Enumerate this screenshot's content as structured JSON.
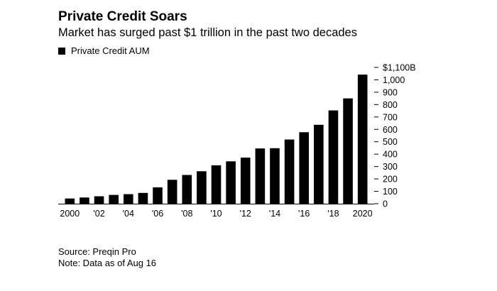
{
  "chart_data": {
    "type": "bar",
    "title": "Private Credit Soars",
    "subtitle": "Market has surged past $1 trillion in the past two decades",
    "legend": "Private Credit AUM",
    "categories": [
      "2000",
      "2001",
      "2002",
      "2003",
      "2004",
      "2005",
      "2006",
      "2007",
      "2008",
      "2009",
      "2010",
      "2011",
      "2012",
      "2013",
      "2014",
      "2015",
      "2016",
      "2017",
      "2018",
      "2019",
      "2020"
    ],
    "x_tick_labels": [
      "2000",
      "'02",
      "'04",
      "'06",
      "'08",
      "'10",
      "'12",
      "'14",
      "'16",
      "'18",
      "2020"
    ],
    "series": [
      {
        "name": "Private Credit AUM",
        "values": [
          42,
          50,
          60,
          71,
          77,
          87,
          132,
          193,
          232,
          262,
          310,
          342,
          372,
          446,
          448,
          518,
          577,
          637,
          753,
          850,
          1042
        ]
      }
    ],
    "ylim": [
      0,
      1100
    ],
    "y_ticks": [
      0,
      100,
      200,
      300,
      400,
      500,
      600,
      700,
      800,
      900,
      1000,
      1100
    ],
    "y_tick_labels": [
      "0",
      "100",
      "200",
      "300",
      "400",
      "500",
      "600",
      "700",
      "800",
      "900",
      "1,000",
      "$1,100B"
    ],
    "y_axis_position": "right",
    "grid": false,
    "legend_position": "top-left",
    "bar_color": "#000000"
  },
  "footer": {
    "source": "Source: Preqin Pro",
    "note": "Note: Data as of Aug 16"
  }
}
